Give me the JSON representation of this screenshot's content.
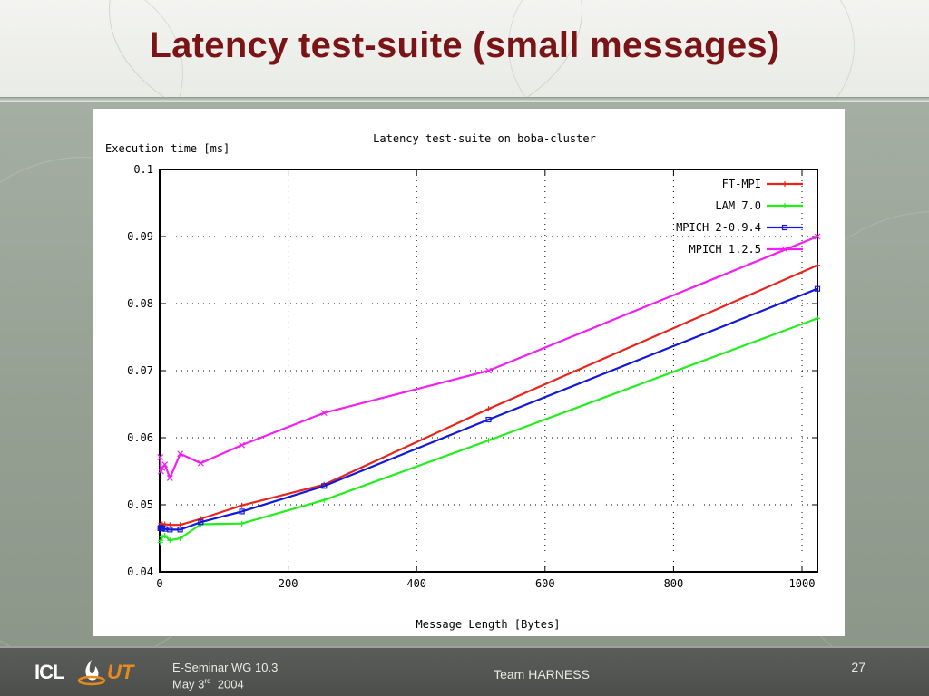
{
  "slide": {
    "title": "Latency test-suite (small messages)"
  },
  "footer": {
    "logo_left": "ICL",
    "logo_right": "UT",
    "event_line": "E-Seminar WG 10.3",
    "date_prefix": "May 3",
    "date_suffix": "rd",
    "date_year": "2004",
    "center": "Team HARNESS",
    "page_number": "27"
  },
  "chart_data": {
    "type": "line",
    "title": "Latency test-suite on boba-cluster",
    "xlabel": "Message Length [Bytes]",
    "ylabel": "Execution time [ms]",
    "xlim": [
      0,
      1024
    ],
    "ylim": [
      0.04,
      0.1
    ],
    "xticks": [
      0,
      200,
      400,
      600,
      800,
      1000
    ],
    "xtick_labels": [
      "0",
      "200",
      "400",
      "600",
      "800",
      "1000"
    ],
    "yticks": [
      0.04,
      0.05,
      0.06,
      0.07,
      0.08,
      0.09,
      0.1
    ],
    "ytick_labels": [
      "0.04",
      "0.05",
      "0.06",
      "0.07",
      "0.08",
      "0.09",
      "0.1"
    ],
    "grid": true,
    "legend_position": "top-right",
    "series": [
      {
        "name": "FT-MPI",
        "color": "#e8251d",
        "marker": "plus",
        "points": [
          [
            1,
            0.0468
          ],
          [
            2,
            0.0472
          ],
          [
            4,
            0.0471
          ],
          [
            8,
            0.0471
          ],
          [
            16,
            0.047
          ],
          [
            32,
            0.047
          ],
          [
            64,
            0.0479
          ],
          [
            128,
            0.0499
          ],
          [
            256,
            0.053
          ],
          [
            512,
            0.0643
          ],
          [
            1024,
            0.0857
          ]
        ]
      },
      {
        "name": "LAM 7.0",
        "color": "#22ee1e",
        "marker": "plus",
        "points": [
          [
            1,
            0.0444
          ],
          [
            2,
            0.0447
          ],
          [
            4,
            0.0452
          ],
          [
            8,
            0.0454
          ],
          [
            16,
            0.0447
          ],
          [
            32,
            0.045
          ],
          [
            64,
            0.0471
          ],
          [
            128,
            0.0472
          ],
          [
            256,
            0.0507
          ],
          [
            512,
            0.0596
          ],
          [
            1024,
            0.0778
          ]
        ]
      },
      {
        "name": "MPICH 2-0.9.4",
        "color": "#1419d6",
        "marker": "square",
        "points": [
          [
            1,
            0.0465
          ],
          [
            2,
            0.0466
          ],
          [
            4,
            0.0465
          ],
          [
            8,
            0.0464
          ],
          [
            16,
            0.0463
          ],
          [
            32,
            0.0463
          ],
          [
            64,
            0.0474
          ],
          [
            128,
            0.049
          ],
          [
            256,
            0.0528
          ],
          [
            512,
            0.0627
          ],
          [
            1024,
            0.0822
          ]
        ]
      },
      {
        "name": "MPICH 1.2.5",
        "color": "#f21ff0",
        "marker": "cross",
        "points": [
          [
            1,
            0.0571
          ],
          [
            2,
            0.055
          ],
          [
            4,
            0.0555
          ],
          [
            8,
            0.056
          ],
          [
            16,
            0.054
          ],
          [
            32,
            0.0576
          ],
          [
            64,
            0.0562
          ],
          [
            128,
            0.0589
          ],
          [
            256,
            0.0637
          ],
          [
            512,
            0.07
          ],
          [
            1024,
            0.09
          ]
        ]
      }
    ]
  }
}
